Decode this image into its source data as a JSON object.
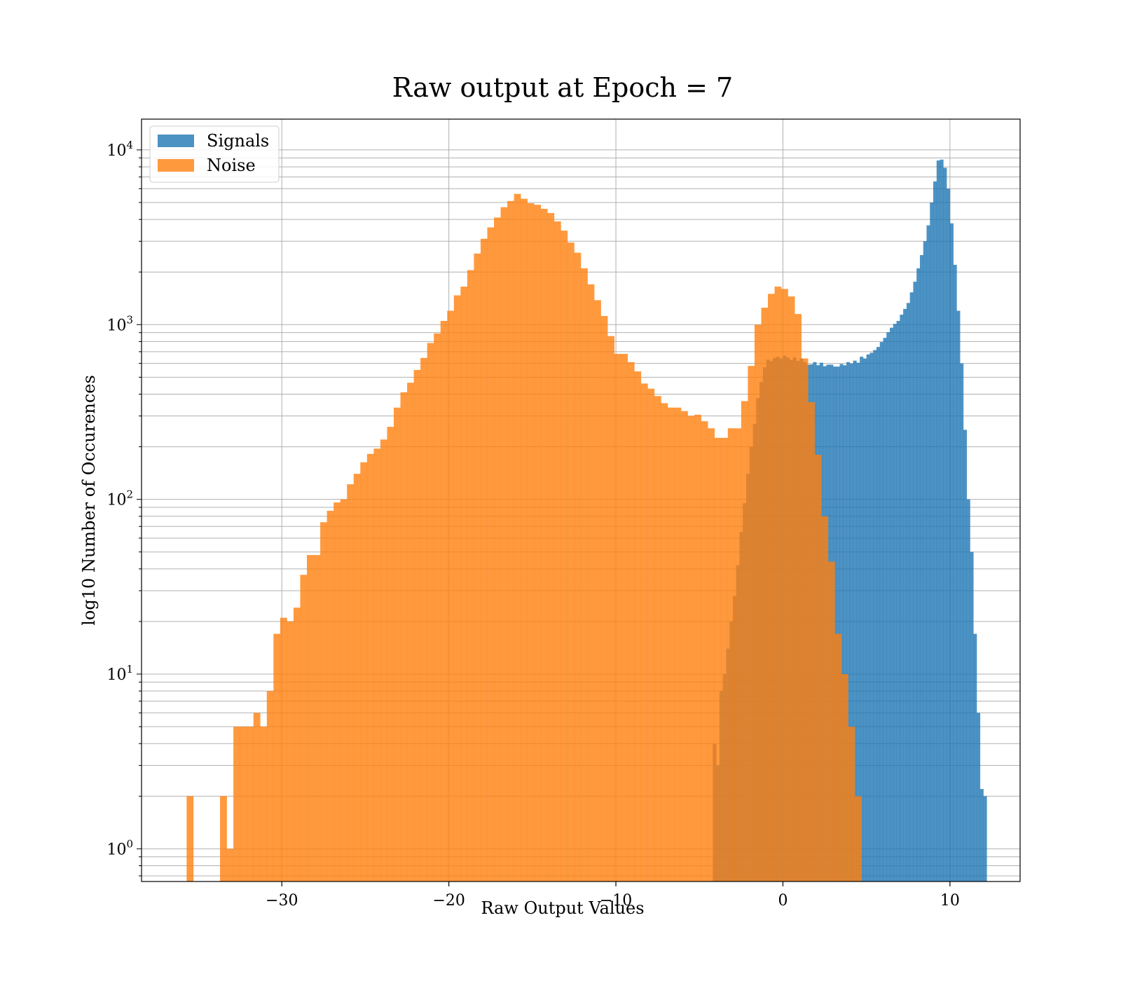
{
  "chart_data": {
    "type": "histogram",
    "title": "Raw output at Epoch = 7",
    "xlabel": "Raw Output Values",
    "ylabel": "log10 Number of Occurences",
    "xlim": [
      -38.4,
      14.2
    ],
    "ylim": [
      0.65,
      15000
    ],
    "yscale": "log",
    "grid": true,
    "legend_position": "top-left",
    "x_ticks": [
      {
        "value": -30,
        "label": "−30"
      },
      {
        "value": -20,
        "label": "−20"
      },
      {
        "value": -10,
        "label": "−10"
      },
      {
        "value": 0,
        "label": "0"
      },
      {
        "value": 10,
        "label": "10"
      }
    ],
    "y_ticks": [
      {
        "value": 1,
        "base": "10",
        "exp": "0"
      },
      {
        "value": 10,
        "base": "10",
        "exp": "1"
      },
      {
        "value": 100,
        "base": "10",
        "exp": "2"
      },
      {
        "value": 1000,
        "base": "10",
        "exp": "3"
      },
      {
        "value": 10000,
        "base": "10",
        "exp": "4"
      }
    ],
    "series": [
      {
        "name": "Signals",
        "color": "#1f77b4",
        "opacity": 0.8,
        "bin_start": -4.2,
        "bin_width": 0.2,
        "values": [
          4,
          3,
          8,
          10,
          14,
          20,
          28,
          42,
          65,
          95,
          140,
          200,
          270,
          380,
          470,
          570,
          630,
          620,
          645,
          655,
          640,
          665,
          648,
          628,
          650,
          620,
          640,
          610,
          590,
          592,
          610,
          586,
          605,
          578,
          590,
          590,
          575,
          575,
          595,
          585,
          610,
          598,
          622,
          605,
          655,
          640,
          675,
          690,
          715,
          745,
          795,
          840,
          905,
          960,
          1010,
          1050,
          1140,
          1230,
          1330,
          1530,
          1760,
          2100,
          2500,
          3000,
          3700,
          5000,
          6600,
          8700,
          8800,
          7900,
          6000,
          3800,
          2200,
          1200,
          600,
          250,
          100,
          50,
          17,
          6,
          2.2,
          2
        ]
      },
      {
        "name": "Noise",
        "color": "#ff7f0e",
        "opacity": 0.8,
        "bin_start": -35.7,
        "bin_width": 0.4,
        "values": [
          2,
          0,
          0,
          0,
          0,
          2,
          1,
          5,
          5,
          5,
          6,
          5,
          8,
          17,
          21,
          20,
          24,
          37,
          48,
          48,
          74,
          86,
          96,
          100,
          122,
          140,
          163,
          182,
          195,
          220,
          260,
          335,
          410,
          465,
          550,
          645,
          785,
          890,
          1050,
          1200,
          1470,
          1650,
          2050,
          2550,
          3100,
          3600,
          4100,
          4700,
          5100,
          5600,
          5250,
          4950,
          4850,
          4600,
          4350,
          3900,
          3450,
          2950,
          2580,
          2100,
          1700,
          1380,
          1120,
          860,
          680,
          680,
          610,
          540,
          460,
          430,
          390,
          355,
          335,
          335,
          320,
          300,
          305,
          280,
          255,
          225,
          225,
          255,
          255,
          365,
          580,
          1000,
          1250,
          1500,
          1650,
          1600,
          1450,
          1150,
          640,
          360,
          180,
          80,
          44,
          17,
          10,
          5,
          2
        ]
      }
    ]
  }
}
